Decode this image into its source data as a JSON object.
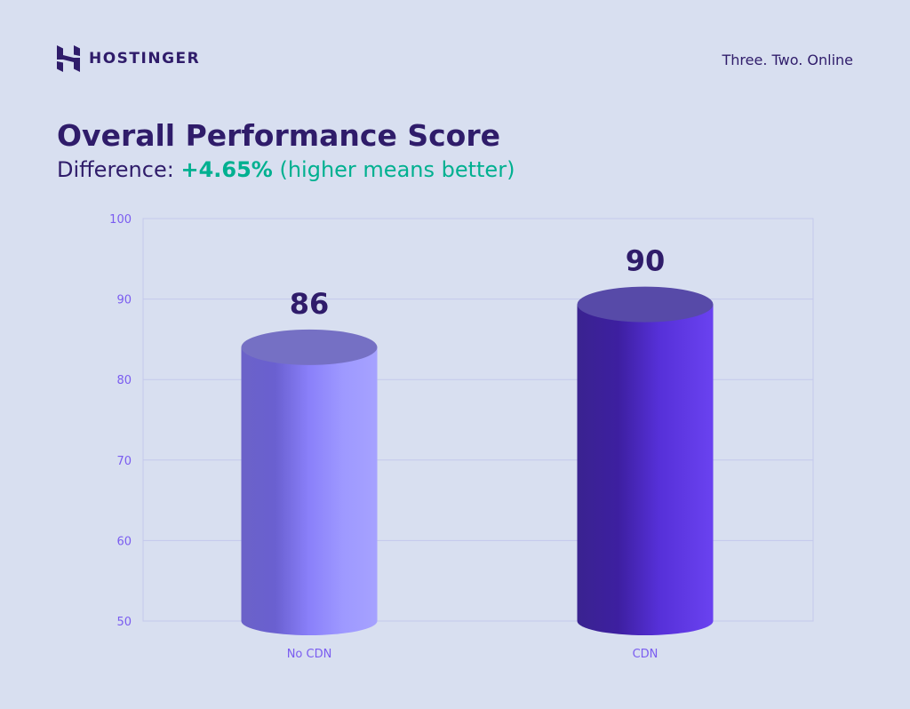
{
  "brand": {
    "name": "HOSTINGER",
    "tagline": "Three. Two. Online"
  },
  "header": {
    "title": "Overall Performance Score",
    "difference_label": "Difference:",
    "difference_value": "+4.65%",
    "difference_note": "(higher means better)"
  },
  "colors": {
    "text": "#2f1c6a",
    "accent": "#00b090",
    "axis": "#7a5cf0",
    "no_cdn": "#9d98ff",
    "cdn": "#673de6"
  },
  "chart_data": {
    "type": "bar",
    "style": "3d-cylinder",
    "categories": [
      "No CDN",
      "CDN"
    ],
    "values": [
      86,
      90
    ],
    "data_labels": [
      "86",
      "90"
    ],
    "ylim": [
      50,
      100
    ],
    "yticks": [
      50,
      60,
      70,
      80,
      90,
      100
    ],
    "grid": true,
    "title": "Overall Performance Score",
    "xlabel": "",
    "ylabel": ""
  }
}
